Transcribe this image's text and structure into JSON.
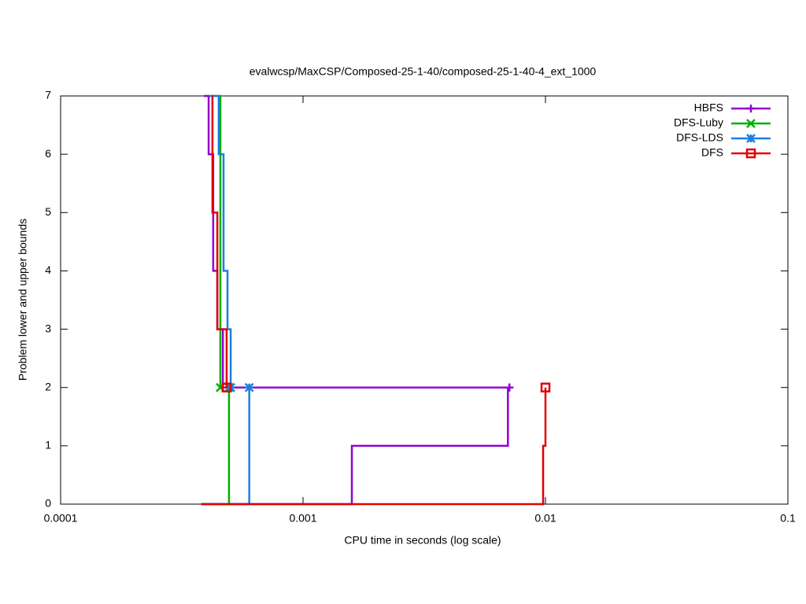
{
  "chart_data": {
    "type": "step-line",
    "title": "evalwcsp/MaxCSP/Composed-25-1-40/composed-25-1-40-4_ext_1000",
    "x_label": "CPU time in seconds (log scale)",
    "y_label": "Problem lower and upper bounds",
    "x_log": true,
    "xlim": [
      0.0001,
      0.1
    ],
    "xticks": [
      0.0001,
      0.001,
      0.01,
      0.1
    ],
    "ylim": [
      0,
      7
    ],
    "yticks": [
      0,
      1,
      2,
      3,
      4,
      5,
      6,
      7
    ],
    "legend": "top-right",
    "series": [
      {
        "name": "HBFS",
        "color": "#9400d3",
        "marker": "plus",
        "x": [
          0.00039,
          0.000408,
          0.000408,
          0.000426,
          0.000426,
          0.000443,
          0.000443,
          0.000467,
          0.000467,
          0.0071,
          null,
          0.00038,
          0.00159,
          0.00159,
          0.007,
          0.007,
          0.0071
        ],
        "values": [
          7,
          7,
          6,
          6,
          4,
          4,
          3,
          3,
          2,
          2,
          null,
          0,
          0,
          1,
          1,
          2,
          2
        ]
      },
      {
        "name": "DFS-Luby",
        "color": "#00b000",
        "marker": "cross",
        "x": [
          0.00043,
          0.000456,
          0.000456,
          null,
          0.00038,
          0.000495,
          0.000495
        ],
        "values": [
          7,
          7,
          2,
          null,
          0,
          0,
          2
        ]
      },
      {
        "name": "DFS-LDS",
        "color": "#1a80e0",
        "marker": "star",
        "x": [
          0.00041,
          0.000449,
          0.000449,
          0.00047,
          0.00047,
          0.000488,
          0.000488,
          0.000503,
          0.000503,
          null,
          0.00038,
          0.0006,
          0.0006
        ],
        "values": [
          7,
          7,
          6,
          6,
          4,
          4,
          3,
          3,
          2,
          null,
          0,
          0,
          2
        ]
      },
      {
        "name": "DFS",
        "color": "#e00000",
        "marker": "square",
        "x": [
          0.00042,
          0.000423,
          0.000423,
          0.000443,
          0.000443,
          0.000484,
          0.000484,
          null,
          0.00038,
          0.00978,
          0.00978,
          0.01,
          0.01
        ],
        "values": [
          7,
          7,
          5,
          5,
          3,
          3,
          2,
          null,
          0,
          0,
          1,
          1,
          2
        ]
      }
    ]
  }
}
